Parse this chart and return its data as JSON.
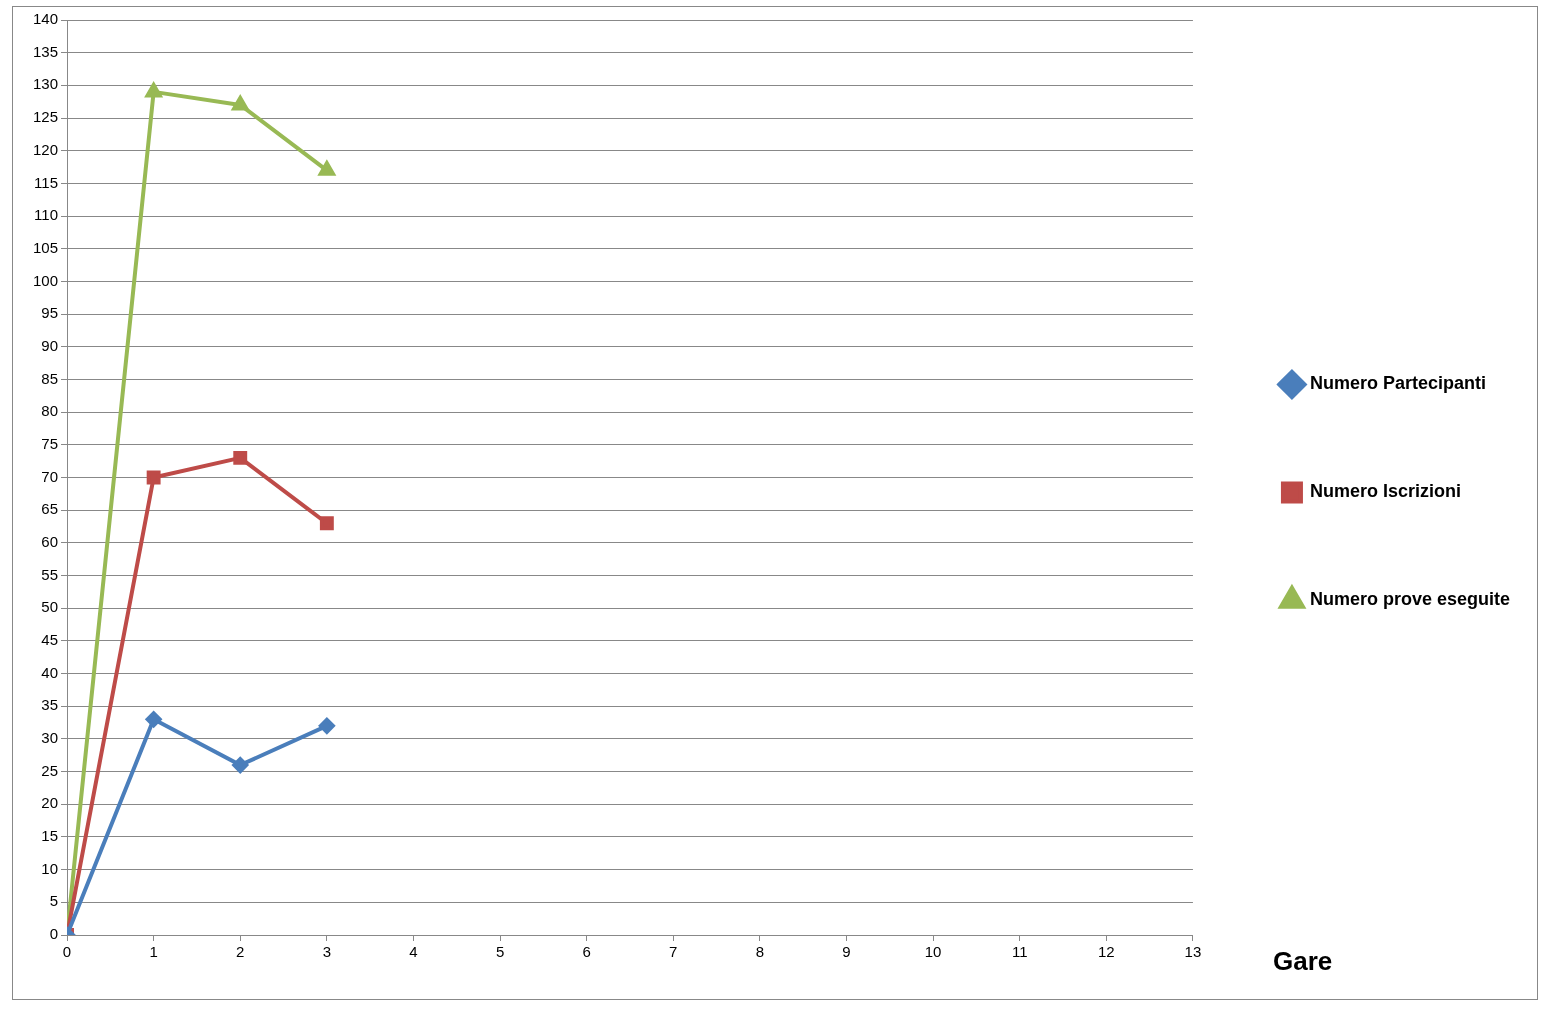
{
  "chart_data": {
    "type": "line",
    "xlabel": "Gare",
    "x": [
      0,
      1,
      2,
      3
    ],
    "series": [
      {
        "name": "Numero Partecipanti",
        "color": "#4a7ebb",
        "marker": "diamond",
        "values": [
          0,
          33,
          26,
          32
        ]
      },
      {
        "name": "Numero Iscrizioni",
        "color": "#be4b48",
        "marker": "square",
        "values": [
          0,
          70,
          73,
          63
        ]
      },
      {
        "name": "Numero prove eseguite",
        "color": "#98b954",
        "marker": "triangle",
        "values": [
          0,
          129,
          127,
          117
        ]
      }
    ],
    "xlim": [
      0,
      13
    ],
    "xticks": [
      0,
      1,
      2,
      3,
      4,
      5,
      6,
      7,
      8,
      9,
      10,
      11,
      12,
      13
    ],
    "ylim": [
      0,
      140
    ],
    "yticks": [
      0,
      5,
      10,
      15,
      20,
      25,
      30,
      35,
      40,
      45,
      50,
      55,
      60,
      65,
      70,
      75,
      80,
      85,
      90,
      95,
      100,
      105,
      110,
      115,
      120,
      125,
      130,
      135,
      140
    ],
    "grid": "y",
    "legend": "right",
    "line_style": "solid"
  }
}
